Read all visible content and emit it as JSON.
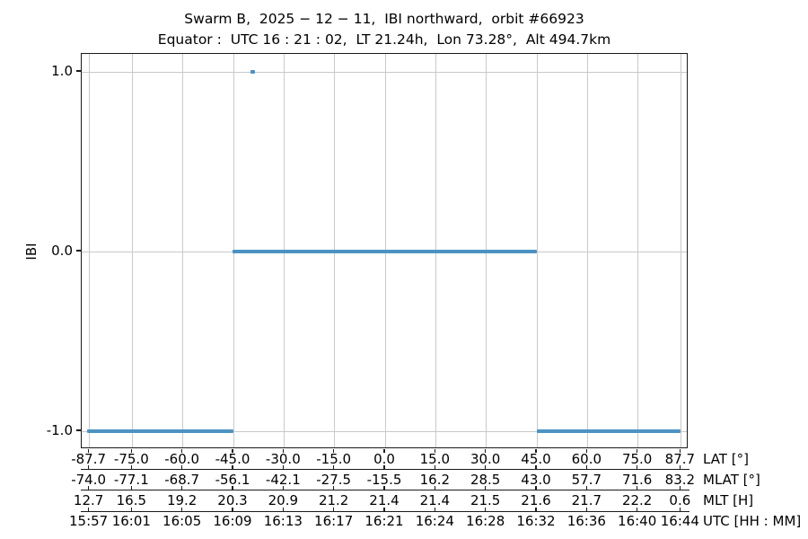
{
  "header": {
    "line1": "Swarm B,  2025 − 12 − 11,  IBI northward,  orbit #66923",
    "line2": "Equator :  UTC 16 : 21 : 02,  LT 21.24h,  Lon 73.28°,  Alt 494.7km"
  },
  "colors": {
    "line": "#4c92c3",
    "grid": "#c9c9c9",
    "axis": "#1a1a1a",
    "text": "#000000",
    "background": "#ffffff"
  },
  "chart_data": {
    "type": "line",
    "title": "Swarm B, 2025-12-11, IBI northward, orbit #66923 — Equator: UTC 16:21:02, LT 21.24h, Lon 73.28°, Alt 494.7km",
    "ylabel": "IBI",
    "ylim": [
      -1.1,
      1.1
    ],
    "grid": true,
    "yticks": [
      {
        "value": 1.0,
        "label": "1.0"
      },
      {
        "value": 0.0,
        "label": "0.0"
      },
      {
        "value": -1.0,
        "label": "-1.0"
      }
    ],
    "xlim_lat": [
      -90,
      90
    ],
    "x_tick_lat": [
      -87.7,
      -75.0,
      -60.0,
      -45.0,
      -30.0,
      -15.0,
      0.0,
      15.0,
      30.0,
      45.0,
      60.0,
      75.0,
      87.7
    ],
    "x_rows": [
      {
        "label": "LAT [°]",
        "values": [
          "-87.7",
          "-75.0",
          "-60.0",
          "-45.0",
          "-30.0",
          "-15.0",
          "0.0",
          "15.0",
          "30.0",
          "45.0",
          "60.0",
          "75.0",
          "87.7"
        ]
      },
      {
        "label": "MLAT [°]",
        "values": [
          "-74.0",
          "-77.1",
          "-68.7",
          "-56.1",
          "-42.1",
          "-27.5",
          "-15.5",
          "16.2",
          "28.5",
          "43.0",
          "57.7",
          "71.6",
          "83.2"
        ]
      },
      {
        "label": "MLT [H]",
        "values": [
          "12.7",
          "16.5",
          "19.2",
          "20.3",
          "20.9",
          "21.2",
          "21.4",
          "21.4",
          "21.5",
          "21.6",
          "21.7",
          "22.2",
          "0.6"
        ]
      },
      {
        "label": "UTC [HH : MM]",
        "values": [
          "15:57",
          "16:01",
          "16:05",
          "16:09",
          "16:13",
          "16:17",
          "16:21",
          "16:24",
          "16:28",
          "16:32",
          "16:36",
          "16:40",
          "16:44"
        ]
      }
    ],
    "series": [
      {
        "name": "IBI",
        "color": "#4c92c3",
        "segments": [
          {
            "value": -1.0,
            "lat_from": -88.5,
            "lat_to": -45.0
          },
          {
            "value": 0.0,
            "lat_from": -45.2,
            "lat_to": 45.0
          },
          {
            "value": -1.0,
            "lat_from": 45.0,
            "lat_to": 87.7
          }
        ],
        "points": [
          {
            "lat": -39.4,
            "value": 1.0
          }
        ]
      }
    ]
  }
}
